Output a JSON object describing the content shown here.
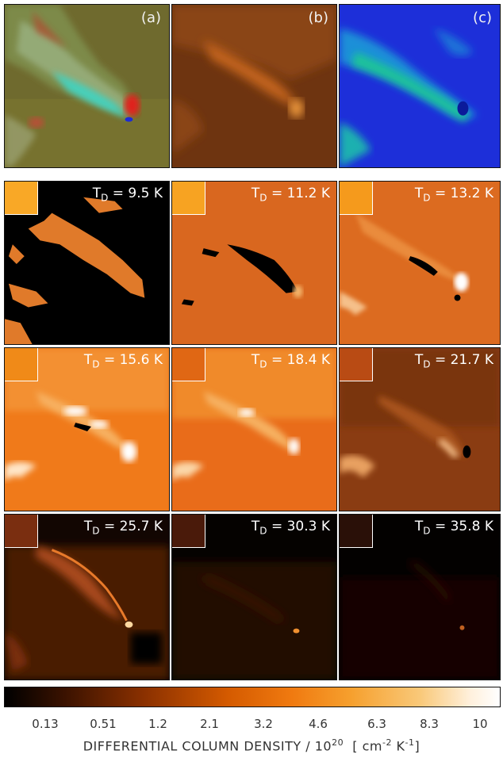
{
  "top_row": [
    {
      "tag": "(a)",
      "name": "panel-a"
    },
    {
      "tag": "(b)",
      "name": "panel-b"
    },
    {
      "tag": "(c)",
      "name": "panel-c"
    }
  ],
  "temperature_panels": [
    {
      "t_sym": "T",
      "t_sub": "D",
      "value": "= 9.5 K",
      "swatch": "#f9a826"
    },
    {
      "t_sym": "T",
      "t_sub": "D",
      "value": "= 11.2 K",
      "swatch": "#f7a322"
    },
    {
      "t_sym": "T",
      "t_sub": "D",
      "value": "= 13.2 K",
      "swatch": "#f59a1c"
    },
    {
      "t_sym": "T",
      "t_sub": "D",
      "value": "= 15.6 K",
      "swatch": "#f08a18"
    },
    {
      "t_sym": "T",
      "t_sub": "D",
      "value": "= 18.4 K",
      "swatch": "#e06714"
    },
    {
      "t_sym": "T",
      "t_sub": "D",
      "value": "= 21.7 K",
      "swatch": "#b94b14"
    },
    {
      "t_sym": "T",
      "t_sub": "D",
      "value": "= 25.7 K",
      "swatch": "#7a2e10"
    },
    {
      "t_sym": "T",
      "t_sub": "D",
      "value": "= 30.3 K",
      "swatch": "#4a1a0a"
    },
    {
      "t_sym": "T",
      "t_sub": "D",
      "value": "= 35.8 K",
      "swatch": "#2a1008"
    }
  ],
  "colorbar": {
    "ticks": [
      "0.13",
      "0.51",
      "1.2",
      "2.1",
      "3.2",
      "4.6",
      "6.3",
      "8.3",
      "10"
    ],
    "title_main": "DIFFERENTIAL COLUMN DENSITY / 10",
    "title_exp": "20",
    "title_unit_pre": "[ cm",
    "title_unit_exp1": "-2",
    "title_unit_mid": " K",
    "title_unit_exp2": "-1",
    "title_unit_post": "]"
  }
}
